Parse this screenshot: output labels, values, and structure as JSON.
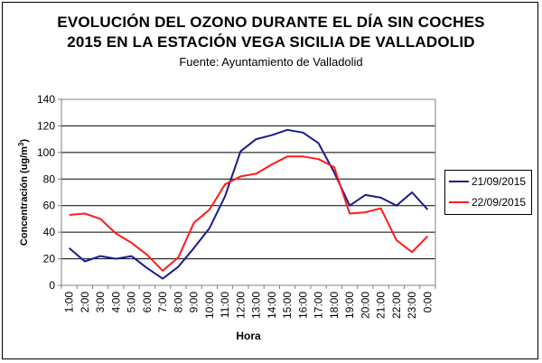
{
  "chart_data": {
    "type": "line",
    "title": "EVOLUCIÓN DEL OZONO DURANTE EL DÍA SIN COCHES",
    "title_line2": "2015 EN LA ESTACIÓN VEGA SICILIA DE VALLADOLID",
    "subtitle": "Fuente: Ayuntamiento de Valladolid",
    "xlabel": "Hora",
    "ylabel": "Concentración (ug/m",
    "ylabel_sup": "3",
    "ylabel_close": ")",
    "categories": [
      "1:00",
      "2:00",
      "3:00",
      "4:00",
      "5:00",
      "6:00",
      "7:00",
      "8:00",
      "9:00",
      "10:00",
      "11:00",
      "12:00",
      "13:00",
      "14:00",
      "15:00",
      "16:00",
      "17:00",
      "18:00",
      "19:00",
      "20:00",
      "21:00",
      "22:00",
      "23:00",
      "0:00"
    ],
    "ylim": [
      0,
      140
    ],
    "yticks": [
      0,
      20,
      40,
      60,
      80,
      100,
      120,
      140
    ],
    "grid": "horizontal",
    "legend_position": "right",
    "series": [
      {
        "name": "21/09/2015",
        "color": "#1b1b8c",
        "values": [
          28,
          18,
          22,
          20,
          22,
          13,
          5,
          14,
          28,
          43,
          67,
          101,
          110,
          113,
          117,
          115,
          107,
          85,
          60,
          68,
          66,
          60,
          70,
          57
        ]
      },
      {
        "name": "22/09/2015",
        "color": "#ff1a1a",
        "values": [
          53,
          54,
          50,
          39,
          32,
          23,
          11,
          21,
          47,
          57,
          76,
          82,
          84,
          91,
          97,
          97,
          95,
          89,
          54,
          55,
          58,
          34,
          25,
          37
        ]
      }
    ]
  }
}
